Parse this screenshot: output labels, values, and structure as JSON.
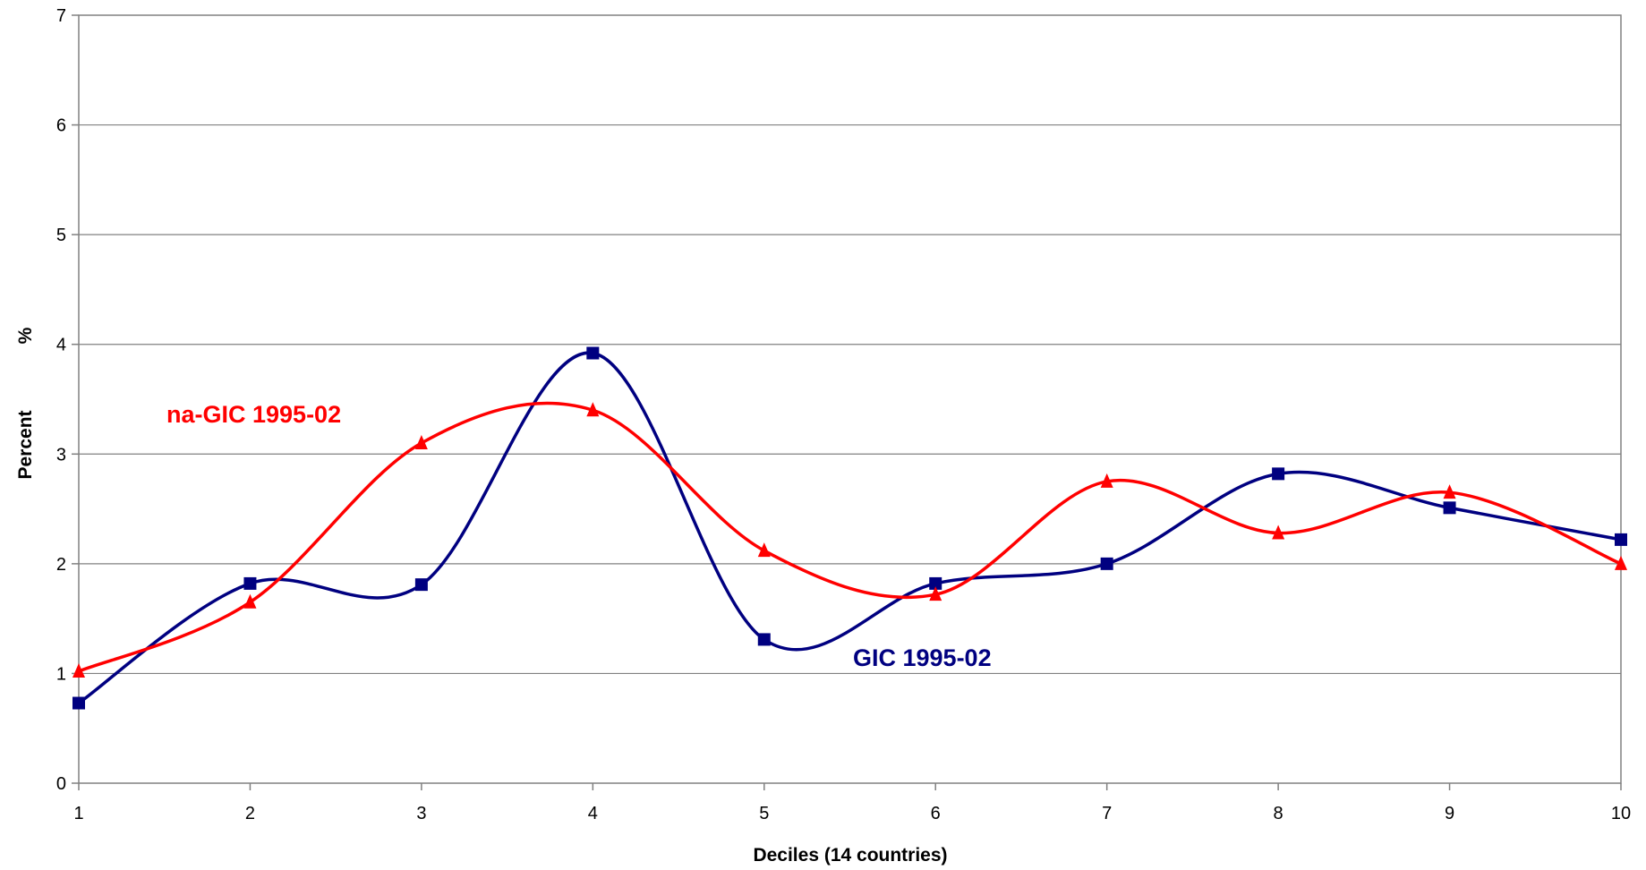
{
  "chart_data": {
    "type": "line",
    "title": "",
    "xlabel": "Deciles (14 countries)",
    "ylabel": "Percent",
    "ylabel_unit": "%",
    "x": [
      1,
      2,
      3,
      4,
      5,
      6,
      7,
      8,
      9,
      10
    ],
    "xlim": [
      1,
      10
    ],
    "ylim": [
      0,
      7
    ],
    "yticks": [
      0,
      1,
      2,
      3,
      4,
      5,
      6,
      7
    ],
    "grid": true,
    "legend": "none",
    "series": [
      {
        "name": "GIC 1995-02",
        "color": "#000080",
        "marker": "square",
        "values": [
          0.73,
          1.82,
          1.81,
          3.92,
          1.31,
          1.82,
          2.0,
          2.82,
          2.51,
          2.22
        ]
      },
      {
        "name": "na-GIC 1995-02",
        "color": "#ff0000",
        "marker": "triangle",
        "values": [
          1.02,
          1.65,
          3.1,
          3.4,
          2.12,
          1.72,
          2.75,
          2.28,
          2.65,
          2.0
        ]
      }
    ]
  }
}
